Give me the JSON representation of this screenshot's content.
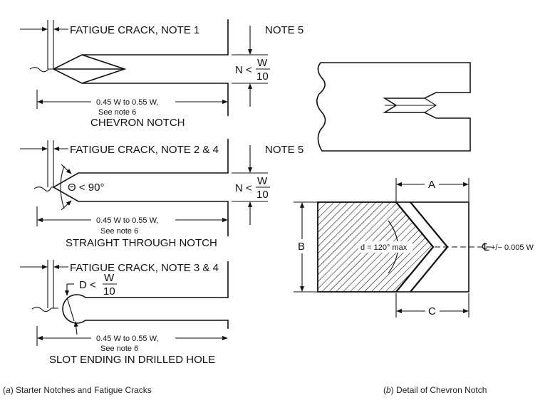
{
  "panel_a": {
    "chevron": {
      "crack_label": "FATIGUE CRACK, NOTE 1",
      "note5": "NOTE 5",
      "n_prefix": "N <",
      "w_num": "W",
      "w_den": "10",
      "range": "0.45 W to 0.55 W,",
      "see_note": "See note 6",
      "title": "CHEVRON NOTCH"
    },
    "straight": {
      "crack_label": "FATIGUE CRACK, NOTE 2 & 4",
      "note5": "NOTE 5",
      "angle": "Θ < 90°",
      "n_prefix": "N <",
      "w_num": "W",
      "w_den": "10",
      "range": "0.45 W to 0.55 W,",
      "see_note": "See note 6",
      "title": "STRAIGHT THROUGH NOTCH"
    },
    "slot": {
      "crack_label": "FATIGUE CRACK, NOTE 3 & 4",
      "d_prefix": "D <",
      "w_num": "W",
      "w_den": "10",
      "range": "0.45 W to 0.55 W,",
      "see_note": "See note 6",
      "title": "SLOT ENDING IN DRILLED HOLE"
    },
    "caption_letter": "a",
    "caption_text": "Starter Notches and Fatigue Cracks"
  },
  "panel_b": {
    "label_a": "A",
    "label_b": "B",
    "label_c": "C",
    "angle_label": "d = 120° max",
    "centerline": "+/− 0.005 W",
    "cl_symbol": "℄",
    "caption_letter": "b",
    "caption_text": "Detail of Chevron Notch"
  }
}
